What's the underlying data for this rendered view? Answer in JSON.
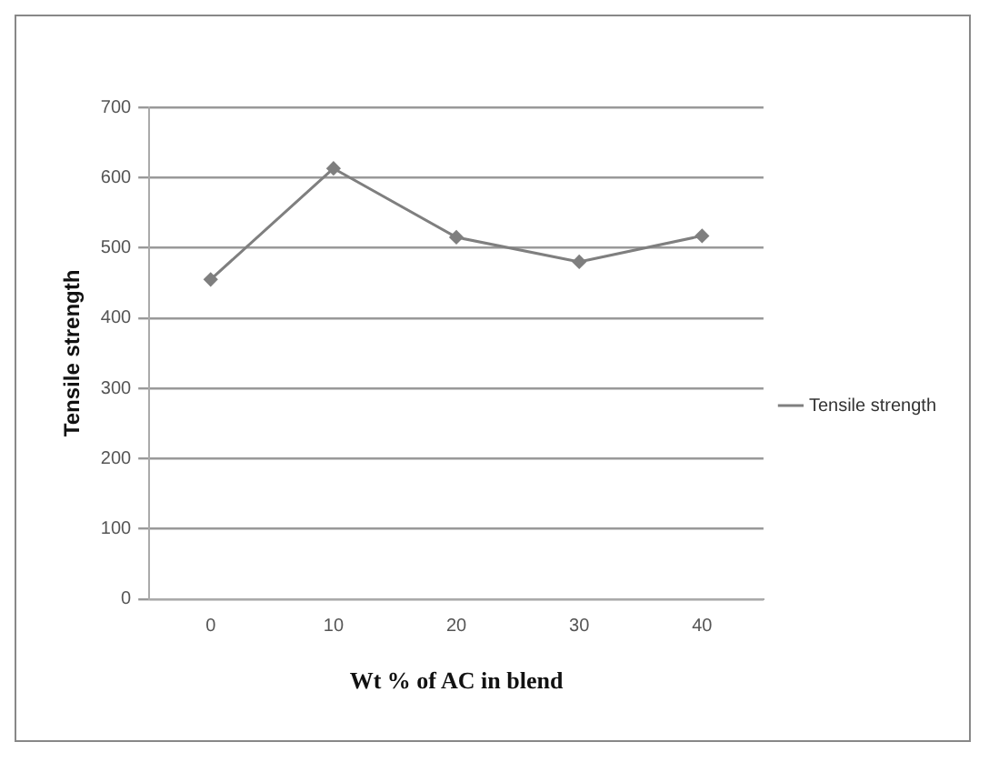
{
  "chart_data": {
    "type": "line",
    "xlabel": "Wt % of AC in blend",
    "ylabel": "Tensile strength",
    "categories": [
      "0",
      "10",
      "20",
      "30",
      "40"
    ],
    "series": [
      {
        "name": "Tensile strength",
        "color": "#7f7f7f",
        "values": [
          455,
          613,
          515,
          480,
          517
        ]
      }
    ],
    "ylim": [
      0,
      700
    ],
    "yticks": [
      0,
      100,
      200,
      300,
      400,
      500,
      600,
      700
    ],
    "grid": "y",
    "legend": "right",
    "marker": "diamond",
    "line_style": "solid"
  }
}
